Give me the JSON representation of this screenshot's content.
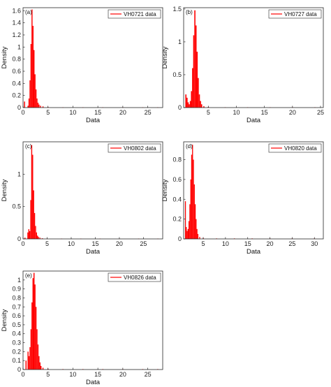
{
  "chart_data": [
    {
      "type": "bar",
      "panel_label": "(a)",
      "xlabel": "Data",
      "ylabel": "Density",
      "xlim": [
        0,
        28
      ],
      "ylim": [
        0,
        1.65
      ],
      "xticks": [
        0,
        5,
        10,
        15,
        20,
        25
      ],
      "yticks": [
        0,
        0.2,
        0.4,
        0.6,
        0.8,
        1,
        1.2,
        1.4,
        1.6
      ],
      "legend_position": "top-right",
      "grid": false,
      "color": "#ff0000",
      "series": [
        {
          "name": "VH0721 data",
          "x": [
            0.3,
            1.0,
            1.2,
            1.4,
            1.6,
            1.8,
            2.0,
            2.2,
            2.4,
            2.6,
            2.8,
            3.0,
            3.2,
            3.5,
            4.0,
            5.0,
            8.0,
            12.0,
            16.0,
            20.0,
            24.0,
            27.0
          ],
          "values": [
            0.1,
            0.03,
            0.15,
            0.45,
            1.05,
            1.62,
            1.35,
            0.95,
            0.55,
            0.3,
            0.15,
            0.08,
            0.05,
            0.03,
            0.02,
            0.01,
            0.005,
            0.005,
            0.005,
            0.005,
            0.005,
            0.005
          ]
        }
      ]
    },
    {
      "type": "bar",
      "panel_label": "(b)",
      "xlabel": "Data",
      "ylabel": "Density",
      "xlim": [
        0.6,
        25.5
      ],
      "ylim": [
        0,
        1.52
      ],
      "xticks": [
        5,
        10,
        15,
        20,
        25
      ],
      "yticks": [
        0,
        0.5,
        1,
        1.5
      ],
      "legend_position": "top-right",
      "grid": false,
      "color": "#ff0000",
      "series": [
        {
          "name": "VH0727 data",
          "x": [
            1.0,
            1.2,
            1.4,
            1.6,
            1.8,
            2.0,
            2.2,
            2.4,
            2.6,
            2.8,
            3.0,
            3.2,
            3.4,
            3.6,
            3.8,
            4.2,
            5.0,
            8.0,
            12.0,
            16.0,
            20.0,
            24.0
          ],
          "values": [
            0.2,
            0.15,
            0.08,
            0.05,
            0.1,
            0.25,
            0.6,
            1.1,
            1.48,
            1.25,
            0.85,
            0.45,
            0.2,
            0.1,
            0.05,
            0.02,
            0.01,
            0.005,
            0.005,
            0.005,
            0.005,
            0.005
          ]
        }
      ]
    },
    {
      "type": "bar",
      "panel_label": "(c)",
      "xlabel": "Data",
      "ylabel": "Density",
      "xlim": [
        0,
        29
      ],
      "ylim": [
        0,
        1.5
      ],
      "xticks": [
        0,
        5,
        10,
        15,
        20,
        25
      ],
      "yticks": [
        0,
        0.5,
        1
      ],
      "legend_position": "top-right",
      "grid": false,
      "color": "#ff0000",
      "series": [
        {
          "name": "VH0802 data",
          "x": [
            0.4,
            1.0,
            1.2,
            1.4,
            1.6,
            1.8,
            2.0,
            2.2,
            2.4,
            2.6,
            2.8,
            3.0,
            3.2,
            3.5,
            4.0,
            5.0,
            8.0,
            12.0,
            16.0,
            20.0,
            24.0,
            28.0
          ],
          "values": [
            0.02,
            0.1,
            0.15,
            0.12,
            0.6,
            1.45,
            1.3,
            0.75,
            0.4,
            0.2,
            0.1,
            0.05,
            0.03,
            0.02,
            0.01,
            0.005,
            0.005,
            0.005,
            0.005,
            0.005,
            0.005,
            0.005
          ]
        }
      ]
    },
    {
      "type": "bar",
      "panel_label": "(d)",
      "xlabel": "Data",
      "ylabel": "Density",
      "xlim": [
        0.6,
        32
      ],
      "ylim": [
        0,
        0.98
      ],
      "xticks": [
        5,
        10,
        15,
        20,
        25,
        30
      ],
      "yticks": [
        0,
        0.2,
        0.4,
        0.6,
        0.8
      ],
      "legend_position": "top-right",
      "grid": false,
      "color": "#ff0000",
      "series": [
        {
          "name": "VH0820 data",
          "x": [
            1.0,
            1.2,
            1.4,
            1.6,
            1.8,
            2.0,
            2.2,
            2.4,
            2.6,
            2.8,
            3.0,
            3.2,
            3.4,
            3.6,
            3.8,
            4.2,
            5.0,
            8.0,
            12.0,
            16.0,
            20.0,
            25.0,
            30.0
          ],
          "values": [
            0.38,
            0.12,
            0.08,
            0.1,
            0.18,
            0.35,
            0.6,
            0.85,
            0.95,
            0.8,
            0.55,
            0.35,
            0.2,
            0.1,
            0.05,
            0.02,
            0.01,
            0.005,
            0.005,
            0.005,
            0.005,
            0.005,
            0.005
          ]
        }
      ]
    },
    {
      "type": "bar",
      "panel_label": "(e)",
      "xlabel": "Data",
      "ylabel": "Density",
      "xlim": [
        0,
        28
      ],
      "ylim": [
        0,
        1.1
      ],
      "xticks": [
        0,
        5,
        10,
        15,
        20,
        25
      ],
      "yticks": [
        0,
        0.1,
        0.2,
        0.3,
        0.4,
        0.5,
        0.6,
        0.7,
        0.8,
        0.9,
        1
      ],
      "legend_position": "top-right",
      "grid": false,
      "color": "#ff0000",
      "series": [
        {
          "name": "VH0826 data",
          "x": [
            0.6,
            1.0,
            1.2,
            1.4,
            1.6,
            1.8,
            2.0,
            2.2,
            2.4,
            2.6,
            2.8,
            3.0,
            3.2,
            3.4,
            3.6,
            4.0,
            5.0,
            8.0,
            12.0,
            16.0,
            20.0,
            24.0,
            27.0
          ],
          "values": [
            0.1,
            0.2,
            0.15,
            0.25,
            0.45,
            0.75,
            1.02,
            1.08,
            0.95,
            0.7,
            0.45,
            0.28,
            0.15,
            0.08,
            0.04,
            0.02,
            0.01,
            0.005,
            0.005,
            0.005,
            0.005,
            0.005,
            0.005
          ]
        }
      ]
    }
  ]
}
